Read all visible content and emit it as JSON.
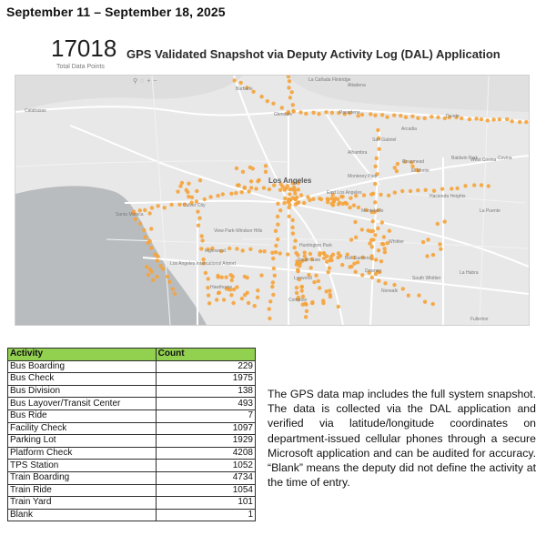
{
  "header": {
    "date_range": "September 11 – September 18, 2025"
  },
  "kpi": {
    "count": "17018",
    "label": "Total Data Points"
  },
  "map": {
    "title": "GPS Validated Snapshot via Deputy Activity Log (DAL) Application",
    "colors": {
      "land": "#e8e8e8",
      "water": "#b9bcbf",
      "roads": "#ffffff",
      "points": "#f5a33a"
    },
    "toolbar_icons": [
      "map-pin-icon",
      "lasso-icon",
      "zoom-in-icon",
      "zoom-out-icon"
    ],
    "place_labels": {
      "calabasas": "Calabasas",
      "burbank": "Burbank",
      "glendale": "Glendale",
      "la_canada": "La Cañada Flintridge",
      "altadena": "Altadena",
      "pasadena": "Pasadena",
      "arcadia": "Arcadia",
      "duarte": "Duarte",
      "san_gabriel": "San Gabriel",
      "alhambra": "Alhambra",
      "el_monte": "El Monte",
      "rosemead": "Rosemead",
      "baldwin_park": "Baldwin Park",
      "west_covina": "West Covina",
      "covina": "Covina",
      "montebello": "Montebello",
      "los_angeles": "Los Angeles",
      "east_la": "East Los Angeles",
      "santa_monica": "Santa Monica",
      "culver_city": "Culver City",
      "view_park": "View Park-Windsor Hills",
      "inglewood": "Inglewood",
      "hawthorne": "Hawthorne",
      "south_gate": "South Gate",
      "downey": "Downey",
      "whittier": "Whittier",
      "compton": "Compton",
      "norwalk": "Norwalk",
      "la_habra": "La Habra",
      "fullerton": "Fullerton",
      "la_puente": "La Puente",
      "hacienda": "Hacienda Heights",
      "lax": "Los Angeles International Airport",
      "huntington_park": "Huntington Park",
      "bell_gardens": "Bell Gardens",
      "lynwood": "Lynwood",
      "south_whittier": "South Whittier",
      "monterey_park": "Monterey Park"
    }
  },
  "table": {
    "headers": [
      "Activity",
      "Count"
    ],
    "rows": [
      {
        "activity": "Bus Boarding",
        "count": "229"
      },
      {
        "activity": "Bus Check",
        "count": "1975"
      },
      {
        "activity": "Bus Division",
        "count": "138"
      },
      {
        "activity": "Bus Layover/Transit Center",
        "count": "493"
      },
      {
        "activity": "Bus Ride",
        "count": "7"
      },
      {
        "activity": "Facility Check",
        "count": "1097"
      },
      {
        "activity": "Parking Lot",
        "count": "1929"
      },
      {
        "activity": "Platform Check",
        "count": "4208"
      },
      {
        "activity": "TPS Station",
        "count": "1052"
      },
      {
        "activity": "Train Boarding",
        "count": "4734"
      },
      {
        "activity": "Train Ride",
        "count": "1054"
      },
      {
        "activity": "Train Yard",
        "count": "101"
      },
      {
        "activity": "Blank",
        "count": "1"
      }
    ]
  },
  "description": "The GPS data map includes the full system snapshot. The data is collected via the DAL application and verified via latitude/longitude coordinates on department-issued cellular phones through a secure Microsoft application and can be audited for accuracy. “Blank” means the deputy did not define the activity at the time of entry."
}
